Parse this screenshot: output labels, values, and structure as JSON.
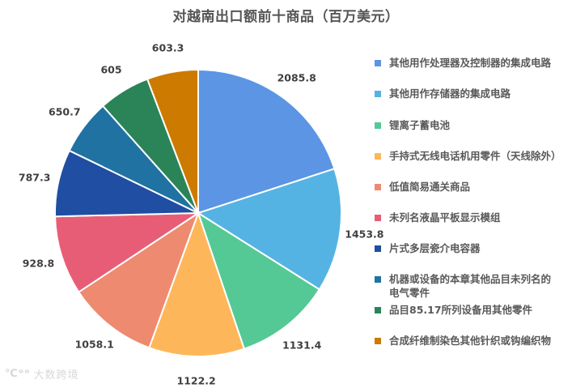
{
  "title": "对越南出口额前十商品（百万美元）",
  "watermark": {
    "logo": "℃ᵒᵒ",
    "text": "大数跨境"
  },
  "chart_data": {
    "type": "pie",
    "title": "对越南出口额前十商品（百万美元）",
    "unit": "百万美元",
    "start_angle": "12 o'clock, clockwise",
    "legend_position": "right",
    "categories": [
      "其他用作处理器及控制器的集成电路",
      "其他用作存储器的集成电路",
      "锂离子蓄电池",
      "手持式无线电话机用零件（天线除外）",
      "低值简易通关商品",
      "未列名液晶平板显示模组",
      "片式多层瓷介电容器",
      "机器或设备的本章其他品目未列名的电气零件",
      "品目85.17所列设备用其他零件",
      "合成纤维制染色其他针织或钩编织物"
    ],
    "values": [
      2085.8,
      1453.8,
      1131.4,
      1122.2,
      1058.1,
      928.8,
      787.3,
      650.7,
      605,
      603.3
    ],
    "labels": [
      "2085.8",
      "1453.8",
      "1131.4",
      "1122.2",
      "1058.1",
      "928.8",
      "787.3",
      "650.7",
      "605",
      "603.3"
    ],
    "colors": [
      "#5b95e3",
      "#55b3e3",
      "#55c995",
      "#fdb75a",
      "#ee8a6f",
      "#e85d76",
      "#1f4ea3",
      "#1f72a2",
      "#2a8458",
      "#cc7a00"
    ]
  },
  "legend": [
    {
      "label": "其他用作处理器及控制器的集成电路",
      "color": "#5b95e3"
    },
    {
      "label": "其他用作存储器的集成电路",
      "color": "#55b3e3"
    },
    {
      "label": "锂离子蓄电池",
      "color": "#55c995"
    },
    {
      "label": "手持式无线电话机用零件（天线除外）",
      "color": "#fdb75a"
    },
    {
      "label": "低值简易通关商品",
      "color": "#ee8a6f"
    },
    {
      "label": "未列名液晶平板显示模组",
      "color": "#e85d76"
    },
    {
      "label": "片式多层瓷介电容器",
      "color": "#1f4ea3"
    },
    {
      "label": "机器或设备的本章其他品目未列名的电气零件",
      "color": "#1f72a2"
    },
    {
      "label": "品目85.17所列设备用其他零件",
      "color": "#2a8458"
    },
    {
      "label": "合成纤维制染色其他针织或钩编织物",
      "color": "#cc7a00"
    }
  ]
}
